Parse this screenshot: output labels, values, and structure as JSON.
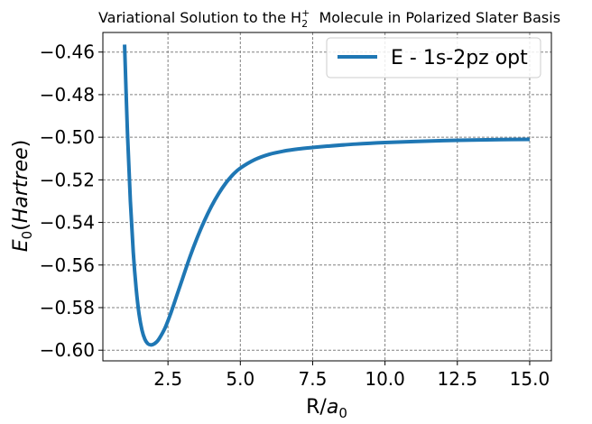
{
  "chart_data": {
    "type": "line",
    "title": {
      "prefix": "Variational Solution to the H",
      "sub": "2",
      "sup": "+",
      "suffix": "  Molecule in Polarized Slater Basis"
    },
    "xlabel": {
      "main": "R/",
      "italic": "a",
      "sub": "0"
    },
    "ylabel": {
      "italic": "E",
      "sub": "0",
      "paren": "(",
      "italic2": "Hartree",
      "close": ")"
    },
    "xlim": [
      0.25,
      15.75
    ],
    "ylim": [
      -0.605,
      -0.4508
    ],
    "xticks": [
      2.5,
      5.0,
      7.5,
      10.0,
      12.5,
      15.0
    ],
    "xtick_labels": [
      "2.5",
      "5.0",
      "7.5",
      "10.0",
      "12.5",
      "15.0"
    ],
    "yticks": [
      -0.46,
      -0.48,
      -0.5,
      -0.52,
      -0.54,
      -0.56,
      -0.58,
      -0.6
    ],
    "ytick_labels": [
      "−0.46",
      "−0.48",
      "−0.50",
      "−0.52",
      "−0.54",
      "−0.56",
      "−0.58",
      "−0.60"
    ],
    "grid": true,
    "legend_position": "top-right",
    "series": [
      {
        "name": "E - 1s-2pz opt",
        "color": "#1f77b4",
        "x": [
          1.0,
          1.1,
          1.2,
          1.3,
          1.4,
          1.5,
          1.6,
          1.7,
          1.8,
          1.9,
          2.0,
          2.1,
          2.2,
          2.4,
          2.6,
          2.8,
          3.0,
          3.25,
          3.5,
          3.75,
          4.0,
          4.25,
          4.5,
          4.75,
          5.0,
          5.5,
          6.0,
          6.5,
          7.0,
          7.5,
          8.0,
          9.0,
          10.0,
          11.0,
          12.0,
          13.0,
          14.0,
          15.0
        ],
        "y": [
          -0.4565,
          -0.498,
          -0.53,
          -0.554,
          -0.571,
          -0.583,
          -0.5905,
          -0.5948,
          -0.5969,
          -0.5975,
          -0.5972,
          -0.5962,
          -0.5945,
          -0.5895,
          -0.5825,
          -0.5745,
          -0.5665,
          -0.5565,
          -0.5475,
          -0.5395,
          -0.5325,
          -0.5265,
          -0.5215,
          -0.5175,
          -0.5145,
          -0.5105,
          -0.508,
          -0.5065,
          -0.5055,
          -0.5048,
          -0.5042,
          -0.5032,
          -0.5025,
          -0.502,
          -0.5016,
          -0.5013,
          -0.5011,
          -0.501
        ]
      }
    ]
  }
}
